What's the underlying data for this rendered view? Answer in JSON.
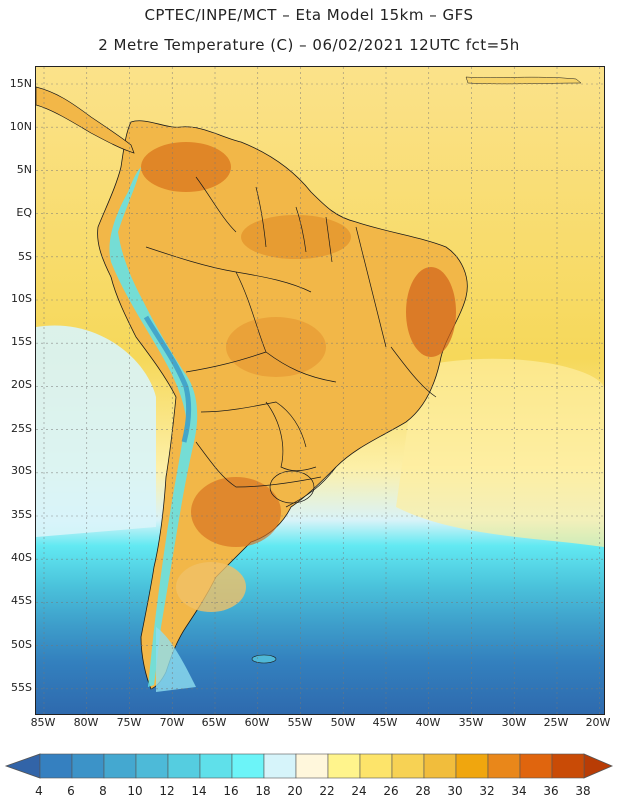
{
  "header": {
    "line1": "CPTEC/INPE/MCT –  Eta Model 15km – GFS",
    "line2": "2 Metre Temperature (C) – 06/02/2021 12UTC fct=5h"
  },
  "map": {
    "region": "South America",
    "lat_labels": [
      "15N",
      "10N",
      "5N",
      "EQ",
      "5S",
      "10S",
      "15S",
      "20S",
      "25S",
      "30S",
      "35S",
      "40S",
      "45S",
      "50S",
      "55S"
    ],
    "lon_labels": [
      "85W",
      "80W",
      "75W",
      "70W",
      "65W",
      "60W",
      "55W",
      "50W",
      "45W",
      "40W",
      "35W",
      "30W",
      "25W",
      "20W"
    ]
  },
  "legend": {
    "values": [
      "4",
      "6",
      "8",
      "10",
      "12",
      "14",
      "16",
      "18",
      "20",
      "22",
      "24",
      "26",
      "28",
      "30",
      "32",
      "34",
      "36",
      "38"
    ],
    "colors": [
      "#2e6fb0",
      "#3580c0",
      "#3c93c8",
      "#44a8d0",
      "#4dbad8",
      "#55cde0",
      "#5fe0ea",
      "#6cf4f8",
      "#d6f4fa",
      "#fff7dc",
      "#fff48c",
      "#fde46a",
      "#f7d254",
      "#f1bd3c",
      "#f0a60e",
      "#e9871a",
      "#e0650e",
      "#c94b06",
      "#b73c05"
    ],
    "left_arrow_color": "#3264a8",
    "right_arrow_color": "#b83c05"
  }
}
